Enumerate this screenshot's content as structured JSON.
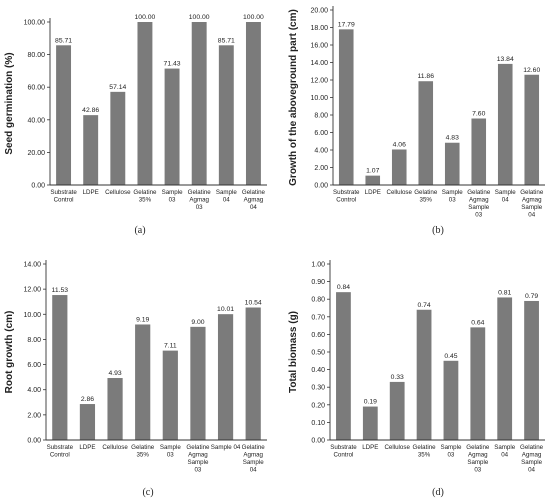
{
  "colors": {
    "bar": "#7b7b7b",
    "axis": "#333333",
    "text": "#222222"
  },
  "chart_data": [
    {
      "type": "bar",
      "panel": "(a)",
      "ylabel": "Seed germination (%)",
      "ylim": [
        0,
        100
      ],
      "ytick_labels": [
        "0.00",
        "20.00",
        "40.00",
        "60.00",
        "80.00",
        "100.00"
      ],
      "categories": [
        [
          "Substrate",
          "Control"
        ],
        [
          "LDPE"
        ],
        [
          "Cellulose"
        ],
        [
          "Gelatine",
          "35%"
        ],
        [
          "Sample",
          "03"
        ],
        [
          "Gelatine",
          "Agmag",
          "03"
        ],
        [
          "Sample",
          "04"
        ],
        [
          "Gelatine",
          "Agmag",
          "04"
        ]
      ],
      "values": [
        85.71,
        42.86,
        57.14,
        100.0,
        71.43,
        100.0,
        85.71,
        100.0
      ],
      "value_labels": [
        "85.71",
        "42.86",
        "57.14",
        "100.00",
        "71.43",
        "100.00",
        "85.71",
        "100.00"
      ]
    },
    {
      "type": "bar",
      "panel": "(b)",
      "ylabel": "Growth of the aboveground part (cm)",
      "ylim": [
        0,
        20
      ],
      "ytick_labels": [
        "0.00",
        "2.00",
        "4.00",
        "6.00",
        "8.00",
        "10.00",
        "12.00",
        "14.00",
        "16.00",
        "18.00",
        "20.00"
      ],
      "categories": [
        [
          "Substrate",
          "Control"
        ],
        [
          "LDPE"
        ],
        [
          "Cellulose"
        ],
        [
          "Gelatine",
          "35%"
        ],
        [
          "Sample",
          "03"
        ],
        [
          "Gelatine",
          "Agmag",
          "Sample",
          "03"
        ],
        [
          "Sample",
          "04"
        ],
        [
          "Gelatine",
          "Agmag",
          "Sample",
          "04"
        ]
      ],
      "values": [
        17.79,
        1.07,
        4.06,
        11.86,
        4.83,
        7.6,
        13.84,
        12.6
      ],
      "value_labels": [
        "17.79",
        "1.07",
        "4.06",
        "11.86",
        "4.83",
        "7.60",
        "13.84",
        "12.60"
      ]
    },
    {
      "type": "bar",
      "panel": "(c)",
      "ylabel": "Root growth (cm)",
      "ylim": [
        0,
        14
      ],
      "ytick_labels": [
        "0.00",
        "2.00",
        "4.00",
        "6.00",
        "8.00",
        "10.00",
        "12.00",
        "14.00"
      ],
      "categories": [
        [
          "Substrate",
          "Control"
        ],
        [
          "LDPE"
        ],
        [
          "Cellulose"
        ],
        [
          "Gelatine",
          "35%"
        ],
        [
          "Sample",
          "03"
        ],
        [
          "Gelatine",
          "Agmag",
          "Sample",
          "03"
        ],
        [
          "Sample 04"
        ],
        [
          "Gelatine",
          "Agmag",
          "Sample",
          "04"
        ]
      ],
      "values": [
        11.53,
        2.86,
        4.93,
        9.19,
        7.11,
        9.0,
        10.01,
        10.54
      ],
      "value_labels": [
        "11.53",
        "2.86",
        "4.93",
        "9.19",
        "7.11",
        "9.00",
        "10.01",
        "10.54"
      ]
    },
    {
      "type": "bar",
      "panel": "(d)",
      "ylabel": "Total biomass (g)",
      "ylim": [
        0,
        1
      ],
      "ytick_labels": [
        "0.00",
        "0.10",
        "0.20",
        "0.30",
        "0.40",
        "0.50",
        "0.60",
        "0.70",
        "0.80",
        "0.90",
        "1.00"
      ],
      "categories": [
        [
          "Substrate",
          "Control"
        ],
        [
          "LDPE"
        ],
        [
          "Cellulose"
        ],
        [
          "Gelatine",
          "35%"
        ],
        [
          "Sample",
          "03"
        ],
        [
          "Gelatine",
          "Agmag",
          "Sample",
          "03"
        ],
        [
          "Sample",
          "04"
        ],
        [
          "Gelatine",
          "Agmag",
          "Sample",
          "04"
        ]
      ],
      "values": [
        0.84,
        0.19,
        0.33,
        0.74,
        0.45,
        0.64,
        0.81,
        0.79
      ],
      "value_labels": [
        "0.84",
        "0.19",
        "0.33",
        "0.74",
        "0.45",
        "0.64",
        "0.81",
        "0.79"
      ]
    }
  ]
}
